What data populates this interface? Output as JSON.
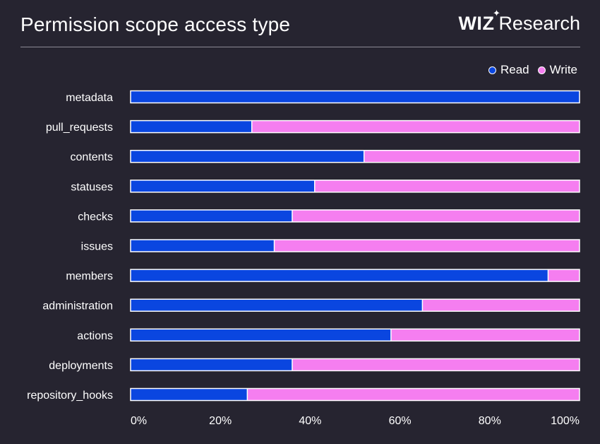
{
  "header": {
    "title": "Permission scope access type",
    "brand_logo": "WIZ",
    "brand_text": "Research"
  },
  "legend": {
    "read_label": "Read",
    "write_label": "Write"
  },
  "colors": {
    "background": "#262430",
    "read": "#0a46e0",
    "write": "#f57ef0",
    "bar_outline": "#ffffff"
  },
  "chart_data": {
    "type": "bar",
    "orientation": "horizontal",
    "stacked": true,
    "normalized": true,
    "title": "Permission scope access type",
    "categories": [
      "metadata",
      "pull_requests",
      "contents",
      "statuses",
      "checks",
      "issues",
      "members",
      "administration",
      "actions",
      "deployments",
      "repository_hooks"
    ],
    "series": [
      {
        "name": "Read",
        "color": "#0a46e0",
        "values": [
          100,
          27,
          52,
          41,
          36,
          32,
          93,
          65,
          58,
          36,
          26
        ]
      },
      {
        "name": "Write",
        "color": "#f57ef0",
        "values": [
          0,
          73,
          48,
          59,
          64,
          68,
          7,
          35,
          42,
          64,
          74
        ]
      }
    ],
    "x_ticks": [
      "0%",
      "20%",
      "40%",
      "60%",
      "80%",
      "100%"
    ],
    "xlim": [
      0,
      100
    ],
    "grid": false,
    "legend_position": "top-right"
  }
}
